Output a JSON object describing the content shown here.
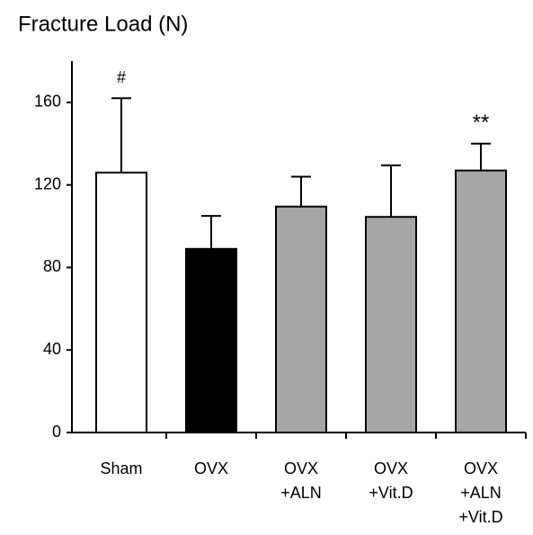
{
  "chart_data": {
    "type": "bar",
    "title": "Fracture Load (N)",
    "categories": [
      [
        "Sham"
      ],
      [
        "OVX"
      ],
      [
        "OVX",
        "+ALN"
      ],
      [
        "OVX",
        "+Vit.D"
      ],
      [
        "OVX",
        "+ALN",
        "+Vit.D"
      ]
    ],
    "values": [
      126,
      89,
      109.5,
      104.5,
      127
    ],
    "errors": [
      36,
      16,
      14.5,
      25,
      13
    ],
    "colors": [
      "#ffffff",
      "#000000",
      "#a6a6a6",
      "#a6a6a6",
      "#a6a6a6"
    ],
    "annotations": [
      "#",
      null,
      null,
      null,
      "**"
    ],
    "ylim": [
      0,
      180
    ],
    "yticks": [
      0,
      40,
      80,
      120,
      160
    ],
    "grid": false
  }
}
